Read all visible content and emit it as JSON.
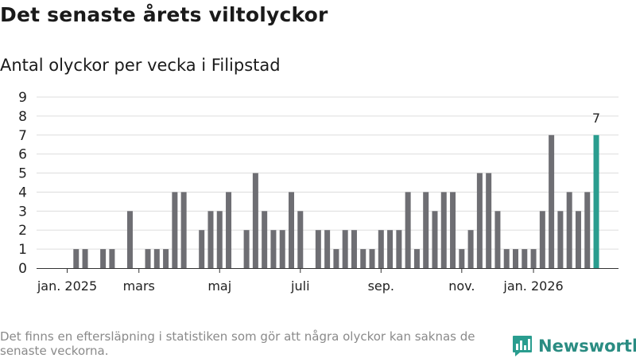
{
  "title": "Det senaste årets viltolyckor",
  "subtitle": "Antal olyckor per vecka i Filipstad",
  "footnote": "Det finns en eftersläpning i statistiken som gör att några olyckor kan saknas de senaste veckorna.",
  "brand": {
    "name": "Newsworthy",
    "icon": "bar-chart-speech-icon",
    "color": "#2a9d8f"
  },
  "colors": {
    "bar": "#6e6e73",
    "highlight": "#2a9d8f",
    "grid": "#dddddd"
  },
  "chart_data": {
    "type": "bar",
    "title": "Antal olyckor per vecka i Filipstad",
    "xlabel": "",
    "ylabel": "",
    "ylim": [
      0,
      9
    ],
    "yticks": [
      0,
      1,
      2,
      3,
      4,
      5,
      6,
      7,
      8,
      9
    ],
    "grid": true,
    "xtick_labels": [
      {
        "label": "jan. 2025",
        "index": 0
      },
      {
        "label": "mars",
        "index": 8
      },
      {
        "label": "maj",
        "index": 17
      },
      {
        "label": "juli",
        "index": 26
      },
      {
        "label": "sep.",
        "index": 35
      },
      {
        "label": "nov.",
        "index": 44
      },
      {
        "label": "jan. 2026",
        "index": 52
      }
    ],
    "values": [
      0,
      1,
      1,
      0,
      1,
      1,
      0,
      3,
      0,
      1,
      1,
      1,
      4,
      4,
      0,
      2,
      3,
      3,
      4,
      0,
      2,
      5,
      3,
      2,
      2,
      4,
      3,
      0,
      2,
      2,
      1,
      2,
      2,
      1,
      1,
      2,
      2,
      2,
      4,
      1,
      4,
      3,
      4,
      4,
      1,
      2,
      5,
      5,
      3,
      1,
      1,
      1,
      1,
      3,
      7,
      3,
      4,
      3,
      4,
      7
    ],
    "highlight_index": 59,
    "highlight_label": "7"
  }
}
